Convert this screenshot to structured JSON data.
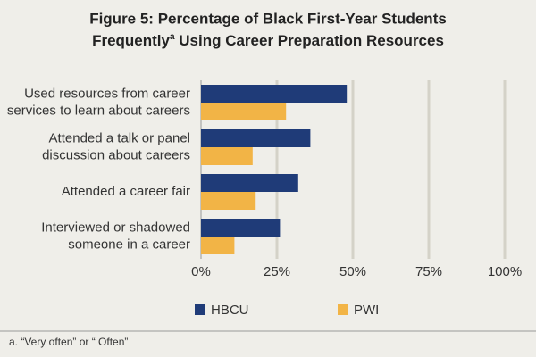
{
  "chart_data": {
    "type": "hbar",
    "title_line1": "Figure 5: Percentage of Black First-Year Students",
    "title_line2_start": "Frequently",
    "title_superscript": "a",
    "title_line2_end": " Using Career Preparation Resources",
    "categories": [
      [
        "Used resources from career",
        "services to learn about careers"
      ],
      [
        "Attended a talk or panel",
        "discussion about careers"
      ],
      [
        "Attended a career fair"
      ],
      [
        "Interviewed or shadowed",
        "someone in a career"
      ]
    ],
    "series": [
      {
        "name": "HBCU",
        "color": "#1f3b78",
        "values": [
          48,
          36,
          32,
          26
        ]
      },
      {
        "name": "PWI",
        "color": "#f2b446",
        "values": [
          28,
          17,
          18,
          11
        ]
      }
    ],
    "xlim": [
      0,
      100
    ],
    "xticks": [
      {
        "value": 0,
        "label": "0%"
      },
      {
        "value": 25,
        "label": "25%"
      },
      {
        "value": 50,
        "label": "50%"
      },
      {
        "value": 75,
        "label": "75%"
      },
      {
        "value": 100,
        "label": "100%"
      }
    ],
    "grid": true,
    "footnote": "a. “Very often” or “ Often”"
  }
}
